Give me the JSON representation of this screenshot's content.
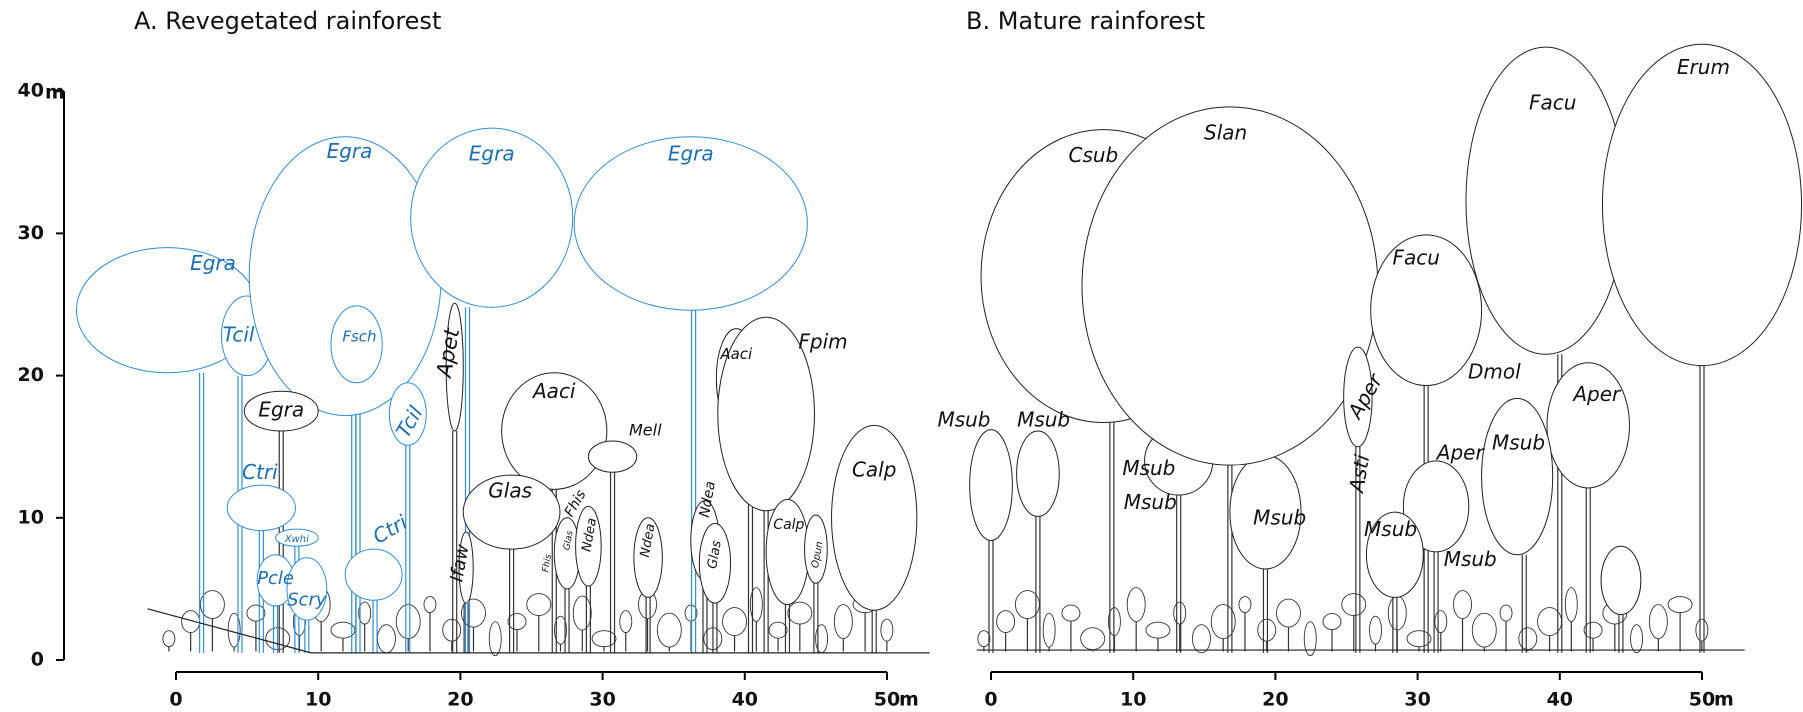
{
  "panel_a": {
    "title": "A. Revegetated rainforest",
    "tree_labels": [
      "Egra",
      "Tcil",
      "Egra",
      "Fsch",
      "Egra",
      "Egra",
      "Apet",
      "Egra",
      "Tcil",
      "Aaci",
      "Mell",
      "Ctri",
      "Glas",
      "Fhis",
      "Xwhi",
      "Ndea",
      "Ctri",
      "Ndea",
      "Ndea",
      "Ifaw",
      "Pcle",
      "Scry",
      "Aaci",
      "Fpim",
      "Calp",
      "Calp",
      "Glas",
      "Opun",
      "Fhis",
      "Glas"
    ],
    "x_axis": {
      "ticks": [
        0,
        10,
        20,
        30,
        40,
        50
      ],
      "unit": "m"
    }
  },
  "panel_b": {
    "title": "B. Mature rainforest",
    "tree_labels": [
      "Msub",
      "Msub",
      "Csub",
      "Slan",
      "Msub",
      "Msub",
      "Msub",
      "Aper",
      "Asti",
      "Facu",
      "Facu",
      "Erum",
      "Dmol",
      "Aper",
      "Aper",
      "Msub",
      "Msub",
      "Msub"
    ],
    "x_axis": {
      "ticks": [
        0,
        10,
        20,
        30,
        40,
        50
      ],
      "unit": "m"
    }
  },
  "y_axis": {
    "ticks": [
      0,
      10,
      20,
      30,
      40
    ],
    "unit": "m"
  }
}
